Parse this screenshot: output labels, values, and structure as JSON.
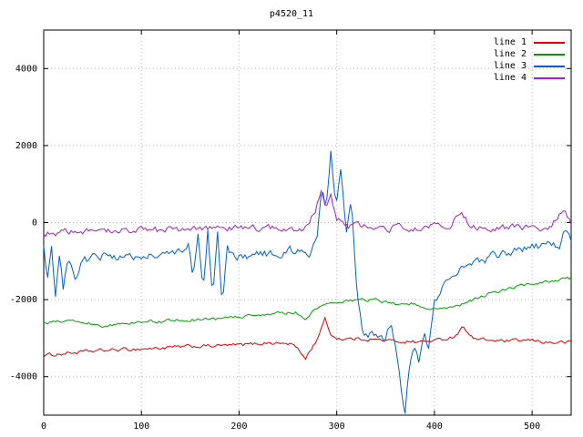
{
  "chart_data": {
    "type": "line",
    "title": "p4520_11",
    "xlabel": "",
    "ylabel": "",
    "xlim": [
      0,
      540
    ],
    "ylim": [
      -5000,
      5000
    ],
    "x_ticks": [
      0,
      100,
      200,
      300,
      400,
      500
    ],
    "y_ticks": [
      -4000,
      -2000,
      0,
      2000,
      4000
    ],
    "grid": true,
    "legend_position": "top-right",
    "background": "#ffffff",
    "grid_color": "#b5b5b5",
    "series": [
      {
        "name": "line 1",
        "color": "#dd0000",
        "noise": 45,
        "keypoints": [
          [
            0,
            -3450
          ],
          [
            30,
            -3380
          ],
          [
            60,
            -3320
          ],
          [
            100,
            -3280
          ],
          [
            150,
            -3220
          ],
          [
            200,
            -3180
          ],
          [
            230,
            -3120
          ],
          [
            255,
            -3150
          ],
          [
            268,
            -3520
          ],
          [
            278,
            -3120
          ],
          [
            288,
            -2520
          ],
          [
            295,
            -2950
          ],
          [
            305,
            -3020
          ],
          [
            330,
            -3020
          ],
          [
            360,
            -3080
          ],
          [
            385,
            -3100
          ],
          [
            405,
            -3050
          ],
          [
            420,
            -2960
          ],
          [
            430,
            -2700
          ],
          [
            440,
            -3020
          ],
          [
            470,
            -3080
          ],
          [
            500,
            -3060
          ],
          [
            520,
            -3120
          ],
          [
            540,
            -3100
          ]
        ]
      },
      {
        "name": "line 2",
        "color": "#00a000",
        "noise": 40,
        "keypoints": [
          [
            0,
            -2600
          ],
          [
            30,
            -2560
          ],
          [
            60,
            -2680
          ],
          [
            90,
            -2600
          ],
          [
            120,
            -2560
          ],
          [
            150,
            -2520
          ],
          [
            180,
            -2500
          ],
          [
            210,
            -2420
          ],
          [
            240,
            -2360
          ],
          [
            258,
            -2320
          ],
          [
            268,
            -2560
          ],
          [
            278,
            -2220
          ],
          [
            290,
            -2120
          ],
          [
            300,
            -2060
          ],
          [
            320,
            -2000
          ],
          [
            340,
            -2010
          ],
          [
            360,
            -2110
          ],
          [
            380,
            -2100
          ],
          [
            400,
            -2260
          ],
          [
            412,
            -2200
          ],
          [
            430,
            -2100
          ],
          [
            450,
            -1900
          ],
          [
            470,
            -1760
          ],
          [
            490,
            -1620
          ],
          [
            510,
            -1560
          ],
          [
            525,
            -1500
          ],
          [
            540,
            -1440
          ]
        ]
      },
      {
        "name": "line 3",
        "color": "#0060d0",
        "noise": 110,
        "keypoints": [
          [
            0,
            -700
          ],
          [
            4,
            -1500
          ],
          [
            8,
            -600
          ],
          [
            12,
            -1800
          ],
          [
            16,
            -900
          ],
          [
            20,
            -1700
          ],
          [
            25,
            -800
          ],
          [
            32,
            -1400
          ],
          [
            40,
            -1000
          ],
          [
            50,
            -900
          ],
          [
            60,
            -880
          ],
          [
            80,
            -920
          ],
          [
            100,
            -820
          ],
          [
            120,
            -860
          ],
          [
            140,
            -800
          ],
          [
            148,
            -500
          ],
          [
            153,
            -1500
          ],
          [
            158,
            -300
          ],
          [
            163,
            -1800
          ],
          [
            168,
            -250
          ],
          [
            173,
            -2000
          ],
          [
            178,
            -300
          ],
          [
            183,
            -2150
          ],
          [
            188,
            -700
          ],
          [
            195,
            -900
          ],
          [
            210,
            -860
          ],
          [
            225,
            -800
          ],
          [
            240,
            -820
          ],
          [
            252,
            -700
          ],
          [
            262,
            -780
          ],
          [
            272,
            -820
          ],
          [
            280,
            -400
          ],
          [
            285,
            900
          ],
          [
            289,
            400
          ],
          [
            294,
            1800
          ],
          [
            299,
            400
          ],
          [
            304,
            1500
          ],
          [
            310,
            -200
          ],
          [
            315,
            500
          ],
          [
            320,
            -1600
          ],
          [
            326,
            -2800
          ],
          [
            332,
            -3000
          ],
          [
            340,
            -2900
          ],
          [
            350,
            -3100
          ],
          [
            355,
            -2600
          ],
          [
            360,
            -3300
          ],
          [
            365,
            -4200
          ],
          [
            370,
            -5000
          ],
          [
            374,
            -3800
          ],
          [
            379,
            -3300
          ],
          [
            384,
            -3600
          ],
          [
            389,
            -2900
          ],
          [
            394,
            -3200
          ],
          [
            400,
            -2100
          ],
          [
            410,
            -1550
          ],
          [
            420,
            -1320
          ],
          [
            430,
            -1220
          ],
          [
            440,
            -1120
          ],
          [
            450,
            -950
          ],
          [
            460,
            -880
          ],
          [
            470,
            -820
          ],
          [
            480,
            -760
          ],
          [
            490,
            -720
          ],
          [
            500,
            -660
          ],
          [
            510,
            -620
          ],
          [
            520,
            -580
          ],
          [
            528,
            -640
          ],
          [
            534,
            -200
          ],
          [
            540,
            -520
          ]
        ]
      },
      {
        "name": "line 4",
        "color": "#a020c8",
        "noise": 85,
        "keypoints": [
          [
            0,
            -300
          ],
          [
            20,
            -250
          ],
          [
            40,
            -220
          ],
          [
            60,
            -260
          ],
          [
            80,
            -200
          ],
          [
            100,
            -160
          ],
          [
            120,
            -210
          ],
          [
            140,
            -160
          ],
          [
            160,
            -120
          ],
          [
            180,
            -170
          ],
          [
            200,
            -110
          ],
          [
            220,
            -160
          ],
          [
            240,
            -110
          ],
          [
            258,
            -220
          ],
          [
            268,
            -110
          ],
          [
            278,
            300
          ],
          [
            284,
            900
          ],
          [
            289,
            400
          ],
          [
            294,
            700
          ],
          [
            300,
            120
          ],
          [
            310,
            -120
          ],
          [
            320,
            -60
          ],
          [
            330,
            -120
          ],
          [
            350,
            -160
          ],
          [
            370,
            -110
          ],
          [
            390,
            -160
          ],
          [
            400,
            -110
          ],
          [
            415,
            -60
          ],
          [
            428,
            220
          ],
          [
            438,
            -110
          ],
          [
            458,
            -160
          ],
          [
            478,
            -110
          ],
          [
            498,
            -160
          ],
          [
            518,
            -110
          ],
          [
            532,
            320
          ],
          [
            540,
            -20
          ]
        ]
      }
    ]
  }
}
